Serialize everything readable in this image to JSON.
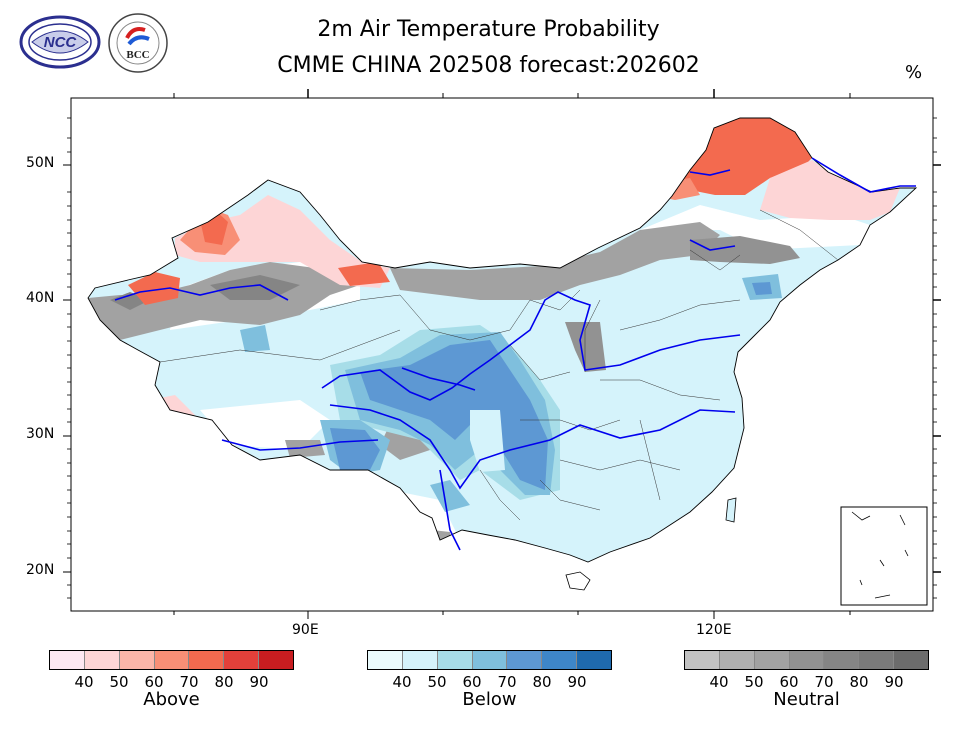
{
  "header": {
    "title": "2m Air Temperature Probability",
    "subtitle": "CMME CHINA 202508 forecast:202602",
    "unit": "%"
  },
  "logos": {
    "ncc": "NCC",
    "bcc": "BCC"
  },
  "axes": {
    "x_ticks": [
      "90E",
      "120E"
    ],
    "y_ticks": [
      "50N",
      "40N",
      "30N",
      "20N"
    ]
  },
  "colorbars": [
    {
      "label": "Above",
      "ticks": [
        "40",
        "50",
        "60",
        "70",
        "80",
        "90"
      ],
      "colors": [
        "#fde8f2",
        "#fdd5d6",
        "#fbb5a8",
        "#f88f76",
        "#f36a4f",
        "#e3403a",
        "#c81d20"
      ]
    },
    {
      "label": "Below",
      "ticks": [
        "40",
        "50",
        "60",
        "70",
        "80",
        "90"
      ],
      "colors": [
        "#eafbfd",
        "#d5f3fb",
        "#a7dde8",
        "#7fbfdd",
        "#5d98d3",
        "#3e86c8",
        "#1f6aae"
      ]
    },
    {
      "label": "Neutral",
      "ticks": [
        "40",
        "50",
        "60",
        "70",
        "80",
        "90"
      ],
      "colors": [
        "#c2c2c2",
        "#b0b0b0",
        "#a2a2a2",
        "#929292",
        "#858585",
        "#7a7a7a",
        "#6c6c6c"
      ]
    }
  ],
  "colors": {
    "river": "#0000ee",
    "border": "#000000"
  }
}
